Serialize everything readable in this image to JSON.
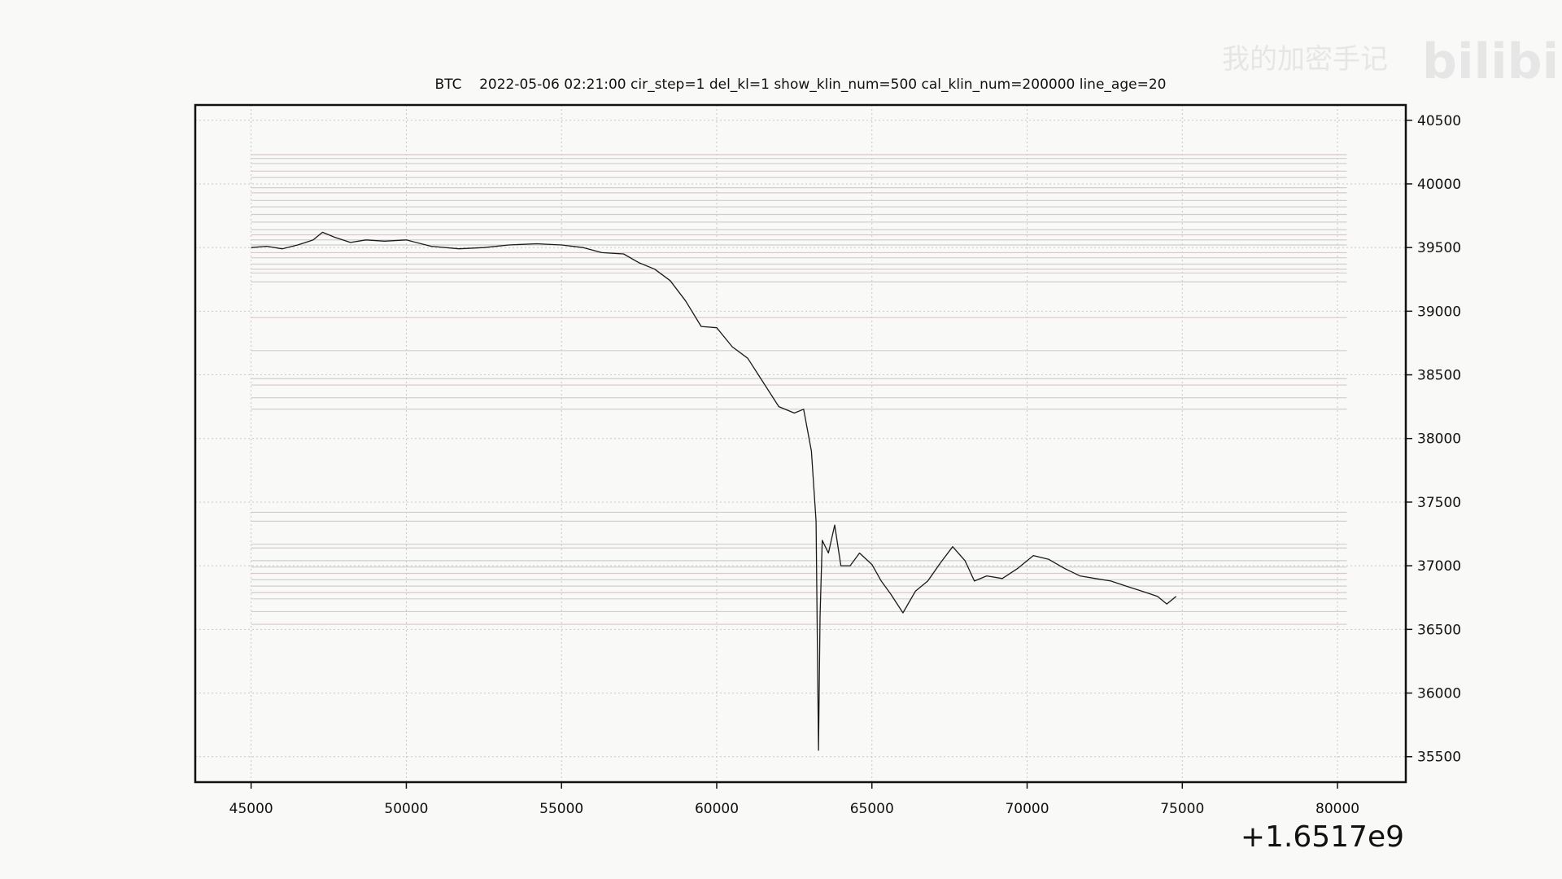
{
  "chart_data": {
    "type": "line",
    "title": "BTC    2022-05-06 02:21:00 cir_step=1 del_kl=1 show_klin_num=500 cal_klin_num=200000 line_age=20",
    "xlabel": "",
    "ylabel": "",
    "x_offset_label": "+1.6517e9",
    "xlim": [
      43200,
      82200
    ],
    "ylim": [
      35300,
      40620
    ],
    "xticks": [
      45000,
      50000,
      55000,
      60000,
      65000,
      70000,
      75000,
      80000
    ],
    "yticks": [
      35500,
      36000,
      36500,
      37000,
      37500,
      38000,
      38500,
      39000,
      39500,
      40000,
      40500
    ],
    "grid": true,
    "series": [
      {
        "name": "",
        "color": "#1a1a1a",
        "x": [
          45000,
          45500,
          46000,
          46500,
          47000,
          47300,
          47700,
          48200,
          48700,
          49300,
          50000,
          50800,
          51700,
          52500,
          53300,
          54200,
          55000,
          55700,
          56300,
          57000,
          57500,
          58000,
          58500,
          59000,
          59500,
          60000,
          60500,
          61000,
          61500,
          62000,
          62500,
          62800,
          63050,
          63200,
          63280,
          63330,
          63400,
          63600,
          63800,
          64000,
          64300,
          64600,
          65000,
          65300,
          65600,
          66000,
          66400,
          66800,
          67200,
          67600,
          68000,
          68300,
          68700,
          69200,
          69700,
          70200,
          70700,
          71200,
          71700,
          72200,
          72700,
          73200,
          73700,
          74200,
          74500,
          74800
        ],
        "y": [
          39500,
          39510,
          39490,
          39520,
          39560,
          39620,
          39580,
          39540,
          39560,
          39550,
          39560,
          39510,
          39490,
          39500,
          39520,
          39530,
          39520,
          39500,
          39460,
          39450,
          39380,
          39330,
          39240,
          39080,
          38880,
          38870,
          38720,
          38630,
          38440,
          38250,
          38200,
          38230,
          37900,
          37350,
          35550,
          36600,
          37200,
          37100,
          37320,
          37000,
          37000,
          37100,
          37010,
          36880,
          36780,
          36630,
          36800,
          36880,
          37020,
          37150,
          37040,
          36880,
          36920,
          36900,
          36980,
          37080,
          37050,
          36980,
          36920,
          36900,
          36880,
          36840,
          36800,
          36760,
          36700,
          36760
        ]
      }
    ],
    "level_lines": [
      40230,
      40200,
      40160,
      40100,
      40050,
      39970,
      39930,
      39870,
      39820,
      39760,
      39700,
      39640,
      39600,
      39560,
      39520,
      39460,
      39420,
      39370,
      39330,
      39300,
      39230,
      38950,
      38690,
      38470,
      38420,
      38320,
      38230,
      37420,
      37350,
      37170,
      37140,
      37040,
      36990,
      36940,
      36890,
      36840,
      36790,
      36740,
      36640,
      36540
    ]
  },
  "watermark": {
    "left_text": "我的加密手记",
    "right_text": "bilibili"
  }
}
